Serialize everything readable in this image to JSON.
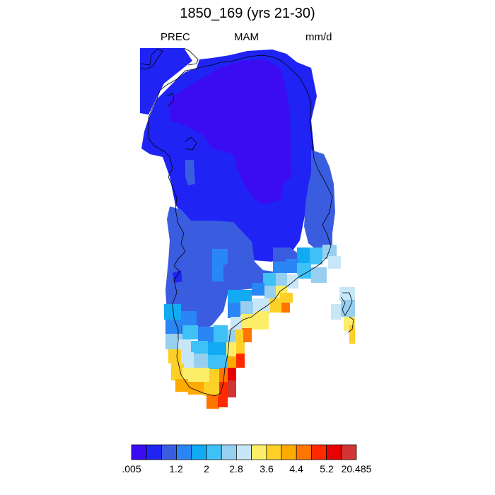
{
  "title": "1850_169 (yrs 21-30)",
  "subtitle": {
    "left": "PREC",
    "center": "MAM",
    "right": "mm/d"
  },
  "colorbar": {
    "colors": [
      "#3b0cf2",
      "#1f24f4",
      "#3a5de0",
      "#2a86f4",
      "#13aaf4",
      "#3fc1f8",
      "#97cff1",
      "#c7e6f8",
      "#fdee6a",
      "#fdd027",
      "#ffaa00",
      "#ff7500",
      "#ff2a00",
      "#e60000",
      "#d23434"
    ],
    "labels": [
      ".005",
      "1.2",
      "2",
      "2.8",
      "3.6",
      "4.4",
      "5.2",
      "20.485"
    ]
  }
}
